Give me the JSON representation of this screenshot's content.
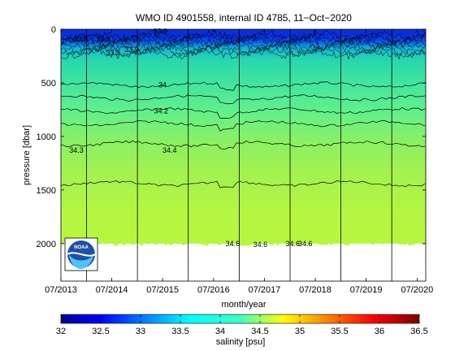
{
  "chart_data": {
    "type": "heatmap",
    "title": "WMO ID 4901558, internal ID 4785, 11−Oct−2020",
    "xlabel": "month/year",
    "ylabel": "pressure [dbar]",
    "x_range": [
      "2013-07-01",
      "2020-09-01"
    ],
    "y_range": [
      0,
      2350
    ],
    "y_reversed": true,
    "x_ticks": [
      "07/2013",
      "07/2014",
      "07/2015",
      "07/2016",
      "07/2017",
      "07/2018",
      "07/2019",
      "07/2020"
    ],
    "y_ticks": [
      0,
      500,
      1000,
      1500,
      2000
    ],
    "profile_max_pressure": 2000,
    "colorbar": {
      "label": "salinity [psu]",
      "min": 32,
      "max": 36.5,
      "ticks": [
        "32",
        "32.5",
        "33",
        "33.5",
        "34",
        "34.5",
        "35",
        "35.5",
        "36",
        "36.5"
      ]
    },
    "year_marker_dates": [
      "2014-01-01",
      "2015-01-01",
      "2016-01-01",
      "2017-01-01",
      "2018-01-01",
      "2019-01-01",
      "2020-01-01"
    ],
    "contour_pressures": [
      520,
      640,
      760,
      880,
      1070,
      1440
    ],
    "contour_labels": [
      {
        "text": "33.9",
        "date": "2013-11-20",
        "pressure": 90
      },
      {
        "text": "33.9",
        "date": "2014-05-01",
        "pressure": 90
      },
      {
        "text": "33.9",
        "date": "2014-07-10",
        "pressure": 220
      },
      {
        "text": "33.9",
        "date": "2014-11-20",
        "pressure": 190
      },
      {
        "text": "33.9",
        "date": "2015-06-15",
        "pressure": 20
      },
      {
        "text": "34",
        "date": "2015-07-01",
        "pressure": 520
      },
      {
        "text": "34.2",
        "date": "2015-06-20",
        "pressure": 760
      },
      {
        "text": "34.3",
        "date": "2013-10-20",
        "pressure": 1130
      },
      {
        "text": "34.4",
        "date": "2015-08-20",
        "pressure": 1130
      },
      {
        "text": "34.6",
        "date": "2013-10-15",
        "pressure": 2000
      },
      {
        "text": "34.6",
        "date": "2016-11-15",
        "pressure": 2000
      },
      {
        "text": "34.6",
        "date": "2017-06-01",
        "pressure": 2010
      },
      {
        "text": "34.6",
        "date": "2018-01-20",
        "pressure": 2000
      },
      {
        "text": "34.6",
        "date": "2018-04-20",
        "pressure": 2000
      }
    ],
    "logo_text": "NOAA",
    "colors": {
      "surface_band": "#0044e0",
      "upper_layer": "#27d6ae",
      "mid_layer": "#52f095",
      "deep_layer": "#9af258",
      "bottom_layer": "#b4f642"
    }
  }
}
